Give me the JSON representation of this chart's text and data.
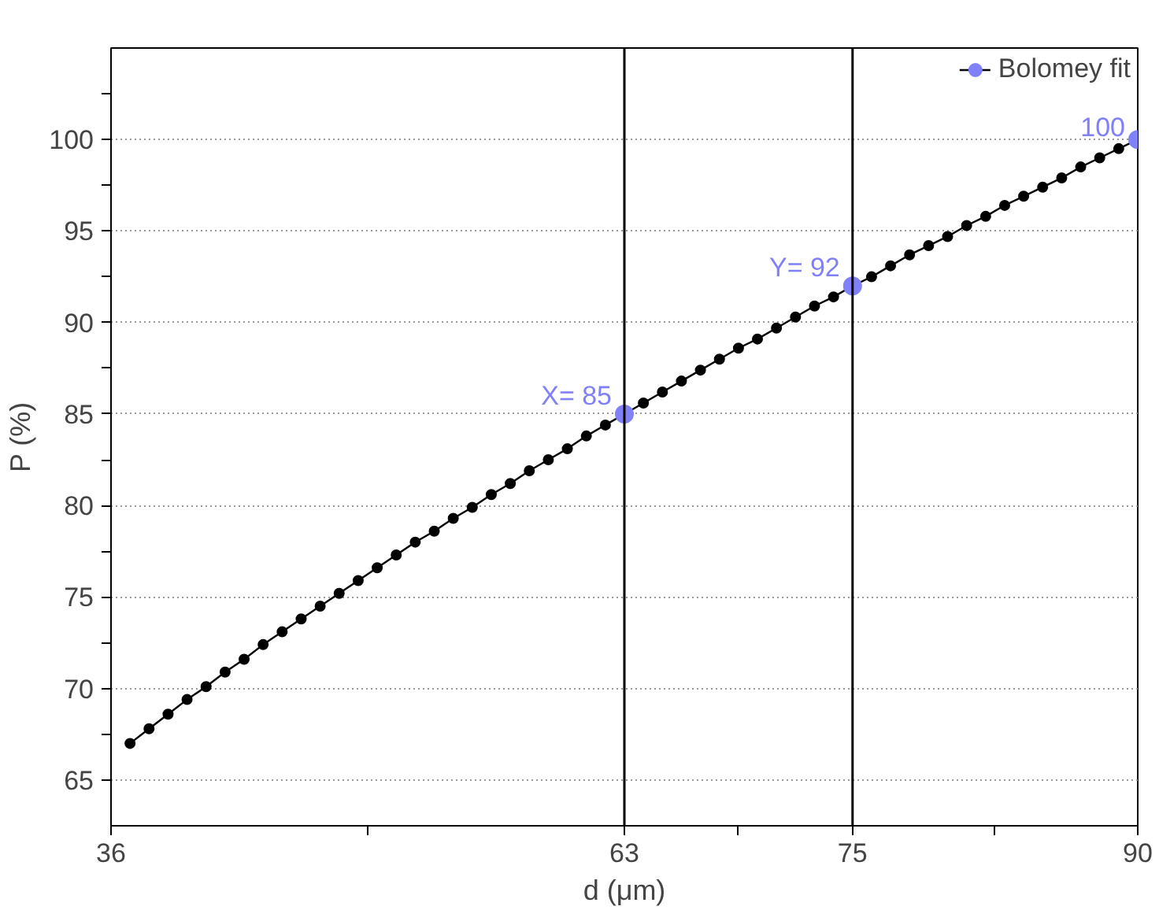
{
  "chart_data": {
    "type": "line",
    "xlabel": "d (μm)",
    "ylabel": "P (%)",
    "xlim": [
      36,
      90
    ],
    "ylim": [
      62.5,
      105
    ],
    "xticks": [
      36,
      {
        "value": 49.5,
        "label": null
      },
      63,
      {
        "value": 69,
        "label": null
      },
      75,
      {
        "value": 82.5,
        "label": null
      },
      90
    ],
    "yticks": [
      65,
      {
        "value": 67.5,
        "label": null
      },
      70,
      {
        "value": 72.5,
        "label": null
      },
      75,
      {
        "value": 77.5,
        "label": null
      },
      80,
      {
        "value": 82.5,
        "label": null
      },
      85,
      {
        "value": 87.5,
        "label": null
      },
      90,
      {
        "value": 92.5,
        "label": null
      },
      95,
      {
        "value": 97.5,
        "label": null
      },
      100,
      {
        "value": 102.5,
        "label": null
      }
    ],
    "grid": "y",
    "legend": "top right",
    "series": [
      {
        "color": "#000000",
        "marker": "circle",
        "x": [
          37,
          38,
          39,
          40,
          41,
          42,
          43,
          44,
          45,
          46,
          47,
          48,
          49,
          50,
          51,
          52,
          53,
          54,
          55,
          56,
          57,
          58,
          59,
          60,
          61,
          62,
          63,
          64,
          65,
          66,
          67,
          68,
          69,
          70,
          71,
          72,
          73,
          74,
          75,
          76,
          77,
          78,
          79,
          80,
          81,
          82,
          83,
          84,
          85,
          86,
          87,
          88,
          89,
          90
        ],
        "values": [
          67.0,
          67.8,
          68.6,
          69.4,
          70.1,
          70.9,
          71.6,
          72.4,
          73.1,
          73.8,
          74.5,
          75.2,
          75.9,
          76.6,
          77.3,
          78.0,
          78.6,
          79.3,
          79.9,
          80.6,
          81.2,
          81.9,
          82.5,
          83.1,
          83.8,
          84.4,
          85.0,
          85.6,
          86.2,
          86.8,
          87.4,
          88.0,
          88.6,
          89.1,
          89.7,
          90.3,
          90.9,
          91.4,
          92.0,
          92.5,
          93.1,
          93.7,
          94.2,
          94.7,
          95.3,
          95.8,
          96.4,
          96.9,
          97.4,
          97.9,
          98.5,
          99.0,
          99.5,
          100.0
        ]
      },
      {
        "type": "scatter",
        "name": "Bolomey fit",
        "color": "#8080f8",
        "marker": "circle",
        "x": [
          63,
          75,
          90
        ],
        "values": [
          85,
          92,
          100
        ]
      }
    ],
    "ref_lines": [
      {
        "axis": "x",
        "value": 63,
        "color": "#000000"
      },
      {
        "axis": "x",
        "value": 75,
        "color": "#000000"
      }
    ],
    "annotations": [
      {
        "text": "X= 85",
        "x": 63,
        "y": 85
      },
      {
        "text": "Y= 92",
        "x": 75,
        "y": 92
      },
      {
        "text": "100",
        "x": 90,
        "y": 100
      }
    ]
  }
}
